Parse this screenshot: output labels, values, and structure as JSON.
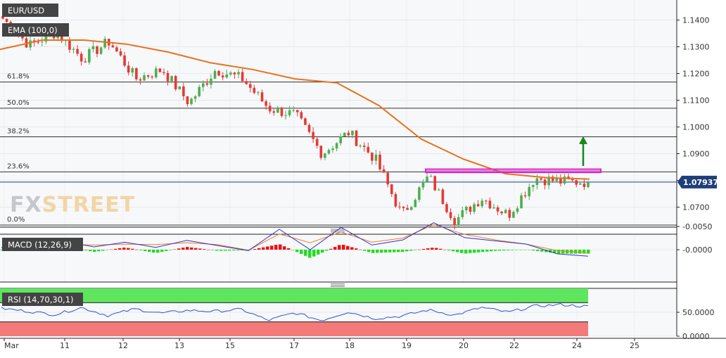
{
  "chart_data": [
    {
      "type": "candlestick",
      "symbol": "EUR/USD",
      "indicator_label": "EMA (100,0)",
      "ylim": [
        1.0625,
        1.1475
      ],
      "y_ticks": [
        "1.1400",
        "1.1300",
        "1.1200",
        "1.1100",
        "1.1000",
        "1.0900",
        "1.0800",
        "1.0700"
      ],
      "y_tick_values": [
        1.14,
        1.13,
        1.12,
        1.11,
        1.1,
        1.09,
        1.08,
        1.07
      ],
      "x_ticks": [
        "Mar",
        "11",
        "12",
        "13",
        "15",
        "17",
        "18",
        "19",
        "20",
        "22",
        "24",
        "25"
      ],
      "last_price": 1.07937,
      "last_price_label": "1.07937",
      "fibonacci_levels": [
        {
          "label": "61.8%",
          "value": 1.1168
        },
        {
          "label": "50.0%",
          "value": 1.107
        },
        {
          "label": "38.2%",
          "value": 1.0963
        },
        {
          "label": "23.6%",
          "value": 1.0832
        },
        {
          "label": "0.0%",
          "value": 1.0633
        }
      ],
      "resistance_zone": [
        1.083,
        1.0842
      ],
      "ema_100": [
        1.129,
        1.1325,
        1.1325,
        1.131,
        1.128,
        1.124,
        1.1215,
        1.118,
        1.1165,
        1.108,
        1.0955,
        1.088,
        1.0825,
        1.081,
        1.0805
      ],
      "price_path": [
        1.1405,
        1.1305,
        1.1355,
        1.1255,
        1.132,
        1.118,
        1.1215,
        1.109,
        1.1215,
        1.118,
        1.107,
        1.1045,
        1.09,
        1.098,
        1.088,
        1.067,
        1.0815,
        1.065,
        1.0735,
        1.067,
        1.081,
        1.0795,
        1.0794
      ]
    },
    {
      "type": "macd",
      "label": "MACD (12,26,9)",
      "y_ticks": [
        "-0.0000",
        "-0.0050"
      ],
      "y_tick_values": [
        0.0,
        -0.005
      ],
      "ylim": [
        -0.0065,
        0.0018
      ],
      "macd_line": [
        -0.0004,
        -0.001,
        -0.0018,
        -0.0006,
        -0.0016,
        -0.0005,
        -0.002,
        -0.0009,
        0.0002,
        -0.0044,
        0.0,
        -0.0048,
        -0.001,
        -0.0021,
        -0.0058,
        -0.0026,
        -0.0019,
        -0.0012,
        0.0009,
        0.0014
      ],
      "signal_line": [
        -0.0005,
        -0.0009,
        -0.0012,
        -0.001,
        -0.0012,
        -0.0011,
        -0.0015,
        -0.0011,
        0.0001,
        -0.0034,
        -0.0015,
        -0.0038,
        -0.0016,
        -0.0025,
        -0.0054,
        -0.0033,
        -0.0021,
        -0.0012,
        0.0002,
        0.0007
      ]
    },
    {
      "type": "rsi",
      "label": "RSI (14,70,30,1)",
      "y_ticks": [
        "50.0000",
        "0.0000"
      ],
      "y_tick_values": [
        50,
        0
      ],
      "ylim": [
        0,
        100
      ],
      "overbought": 70,
      "oversold": 30,
      "rsi_line": [
        58,
        52,
        45,
        60,
        43,
        57,
        48,
        54,
        52,
        56,
        33,
        49,
        33,
        51,
        37,
        42,
        55,
        44,
        60,
        50,
        63,
        66,
        62
      ]
    }
  ],
  "watermark": "FXSTREET",
  "colors": {
    "bull": "#4caf50",
    "bear": "#e53935",
    "ema": "#e8721a",
    "fib_line": "#333333",
    "resistance": "#dd22cc",
    "arrow": "#138a13",
    "macd_line": "#3030d0",
    "signal_line": "#ee7f22",
    "rsi_line": "#3050d8",
    "rsi_overbought_zone": "#5ee65e",
    "rsi_oversold_zone": "#f47a7a",
    "label_bg": "#444444"
  }
}
